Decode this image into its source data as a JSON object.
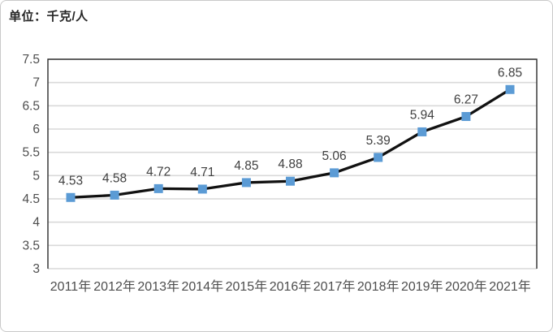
{
  "figure": {
    "unit_label": "单位：千克/人"
  },
  "chart_data": {
    "type": "line",
    "title": "单位：千克/人",
    "categories": [
      "2011年",
      "2012年",
      "2013年",
      "2014年",
      "2015年",
      "2016年",
      "2017年",
      "2018年",
      "2019年",
      "2020年",
      "2021年"
    ],
    "values": [
      4.53,
      4.58,
      4.72,
      4.71,
      4.85,
      4.88,
      5.06,
      5.39,
      5.94,
      6.27,
      6.85
    ],
    "data_labels": [
      "4.53",
      "4.58",
      "4.72",
      "4.71",
      "4.85",
      "4.88",
      "5.06",
      "5.39",
      "5.94",
      "6.27",
      "6.85"
    ],
    "xlabel": "",
    "ylabel": "",
    "ylim": [
      3,
      7.5
    ],
    "ytick_step": 0.5,
    "yticks": [
      "3",
      "3.5",
      "4",
      "4.5",
      "5",
      "5.5",
      "6",
      "6.5",
      "7",
      "7.5"
    ],
    "grid": true,
    "legend": "none",
    "marker_shape": "square",
    "colors": {
      "line": "#111111",
      "marker": "#5b9bd5",
      "gridline": "#d9d9d9",
      "plot_border": "#2b2b2b",
      "axis_text": "#4d4d4d",
      "data_label_text": "#404040",
      "background": "#ffffff"
    }
  }
}
